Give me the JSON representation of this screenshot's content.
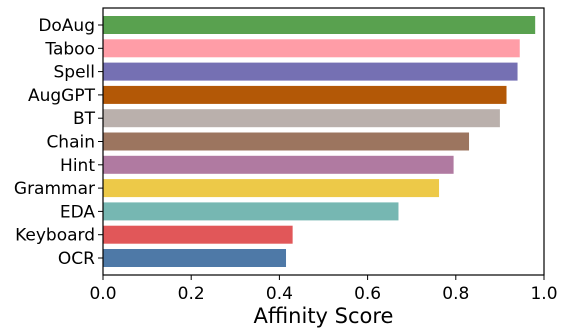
{
  "chart_data": {
    "type": "bar",
    "orientation": "horizontal",
    "categories": [
      "DoAug",
      "Taboo",
      "Spell",
      "AugGPT",
      "BT",
      "Chain",
      "Hint",
      "Grammar",
      "EDA",
      "Keyboard",
      "OCR"
    ],
    "values": [
      0.98,
      0.945,
      0.94,
      0.915,
      0.9,
      0.83,
      0.795,
      0.762,
      0.67,
      0.43,
      0.415
    ],
    "colors": [
      "#59a14f",
      "#ff9da7",
      "#7570b3",
      "#b35806",
      "#bab0ac",
      "#9c755f",
      "#b07aa1",
      "#edc948",
      "#76b7b2",
      "#e15759",
      "#4e79a7"
    ],
    "xlabel": "Affinity Score",
    "ylabel": "",
    "xlim": [
      0.0,
      1.0
    ],
    "xticks": [
      "0.0",
      "0.2",
      "0.4",
      "0.6",
      "0.8",
      "1.0"
    ],
    "grid": false
  }
}
